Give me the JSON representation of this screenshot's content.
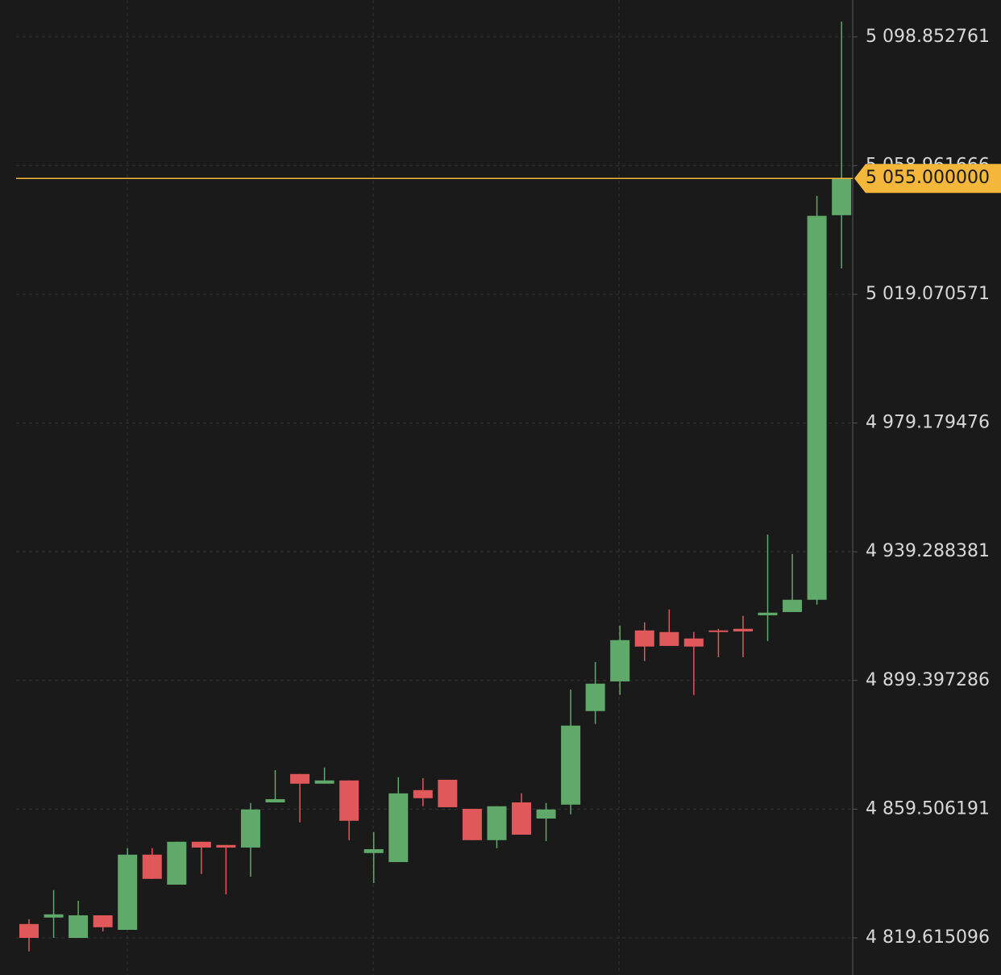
{
  "chart_data": {
    "type": "candlestick",
    "up_color": "#5faa6a",
    "down_color": "#e0585a",
    "grid": true,
    "ylim": [
      4808.1,
      5110.3
    ],
    "yticks": [
      {
        "value": 4819.615096,
        "label": "4 819.615096"
      },
      {
        "value": 4859.506191,
        "label": "4 859.506191"
      },
      {
        "value": 4899.397286,
        "label": "4 899.397286"
      },
      {
        "value": 4939.288381,
        "label": "4 939.288381"
      },
      {
        "value": 4979.179476,
        "label": "4 979.179476"
      },
      {
        "value": 5019.070571,
        "label": "5 019.070571"
      },
      {
        "value": 5058.961666,
        "label": "5 058.961666"
      },
      {
        "value": 5098.852761,
        "label": "5 098.852761"
      }
    ],
    "last_price": {
      "value": 5055,
      "label": "5 055.000000"
    },
    "last_price_color": "#f5b73b",
    "open": [
      4823.9,
      4825.9,
      4819.6,
      4826.6,
      4822.1,
      4845.4,
      4836.1,
      4849.4,
      4848.4,
      4847.6,
      4861.6,
      4870.4,
      4867.4,
      4868.4,
      4845.9,
      4843.1,
      4865.4,
      4868.6,
      4859.6,
      4849.9,
      4861.6,
      4856.6,
      4860.9,
      4889.9,
      4899.1,
      4914.9,
      4914.4,
      4912.4,
      4914.9,
      4915.4,
      4919.6,
      4920.6,
      4924.4,
      5043.6
    ],
    "high": [
      4825.4,
      4834.4,
      4831.1,
      4826.6,
      4847.4,
      4847.4,
      4849.4,
      4849.4,
      4848.4,
      4861.4,
      4871.6,
      4870.4,
      4872.4,
      4868.4,
      4852.4,
      4869.4,
      4869.1,
      4868.6,
      4859.6,
      4860.4,
      4864.4,
      4861.4,
      4896.6,
      4905.1,
      4916.4,
      4917.4,
      4921.4,
      4914.4,
      4915.4,
      4919.4,
      4944.6,
      4938.6,
      5049.6,
      5103.6
    ],
    "low": [
      4815.4,
      4819.6,
      4819.6,
      4821.6,
      4822.1,
      4837.9,
      4836.1,
      4839.4,
      4833.1,
      4838.6,
      4861.6,
      4855.4,
      4867.4,
      4849.9,
      4836.6,
      4843.1,
      4860.4,
      4860.1,
      4849.9,
      4847.4,
      4851.6,
      4849.6,
      4857.9,
      4885.9,
      4894.9,
      4905.4,
      4910.1,
      4894.9,
      4906.6,
      4906.6,
      4911.6,
      4920.6,
      4922.9,
      5027.1
    ],
    "close": [
      4819.6,
      4826.9,
      4826.6,
      4822.9,
      4845.4,
      4837.9,
      4849.4,
      4847.6,
      4847.6,
      4859.4,
      4862.6,
      4867.4,
      4868.4,
      4855.9,
      4847.1,
      4864.4,
      4862.9,
      4860.1,
      4849.9,
      4860.4,
      4851.6,
      4859.4,
      4885.4,
      4898.4,
      4911.9,
      4909.9,
      4910.1,
      4909.9,
      4914.4,
      4914.6,
      4920.4,
      4924.4,
      5043.4,
      5055
    ]
  }
}
